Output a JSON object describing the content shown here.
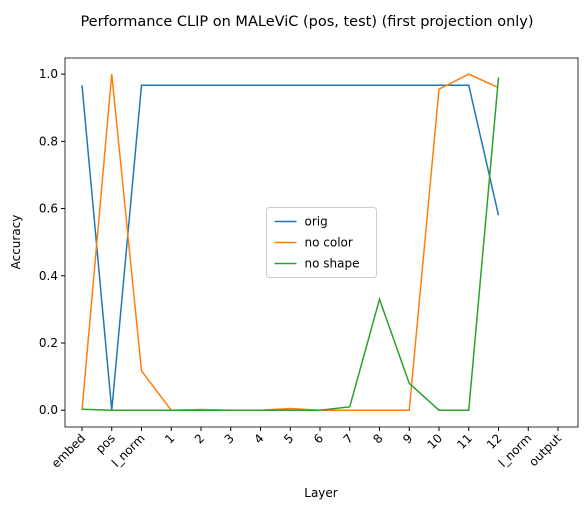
{
  "chart_data": {
    "type": "line",
    "title": "Performance CLIP on MALeViC (pos, test) (first projection only)",
    "xlabel": "Layer",
    "ylabel": "Accuracy",
    "categories": [
      "embed",
      "pos",
      "l_norm",
      "1",
      "2",
      "3",
      "4",
      "5",
      "6",
      "7",
      "8",
      "9",
      "10",
      "11",
      "12",
      "l_norm",
      "output"
    ],
    "series": [
      {
        "name": "orig",
        "color": "#1f77b4",
        "values": [
          0.967,
          0.0,
          0.967,
          0.967,
          0.967,
          0.967,
          0.967,
          0.967,
          0.967,
          0.967,
          0.967,
          0.967,
          0.967,
          0.967,
          0.58,
          null,
          null
        ]
      },
      {
        "name": "no color",
        "color": "#ff7f0e",
        "values": [
          0.0,
          1.0,
          0.117,
          0.0,
          0.002,
          0.0,
          0.0,
          0.005,
          0.0,
          0.0,
          0.0,
          0.0,
          0.955,
          1.0,
          0.96,
          null,
          null
        ]
      },
      {
        "name": "no shape",
        "color": "#2ca02c",
        "values": [
          0.003,
          0.0,
          0.0,
          0.0,
          0.0,
          0.0,
          0.0,
          0.0,
          0.0,
          0.01,
          0.33,
          0.08,
          0.0,
          0.0,
          0.99,
          null,
          null
        ]
      }
    ],
    "ylim": [
      -0.05,
      1.048
    ],
    "yticks": [
      {
        "value": 0,
        "label": "0.0"
      },
      0.2,
      0.4,
      0.6,
      0.8,
      {
        "value": 1,
        "label": "1.0"
      }
    ],
    "legend": "center"
  }
}
